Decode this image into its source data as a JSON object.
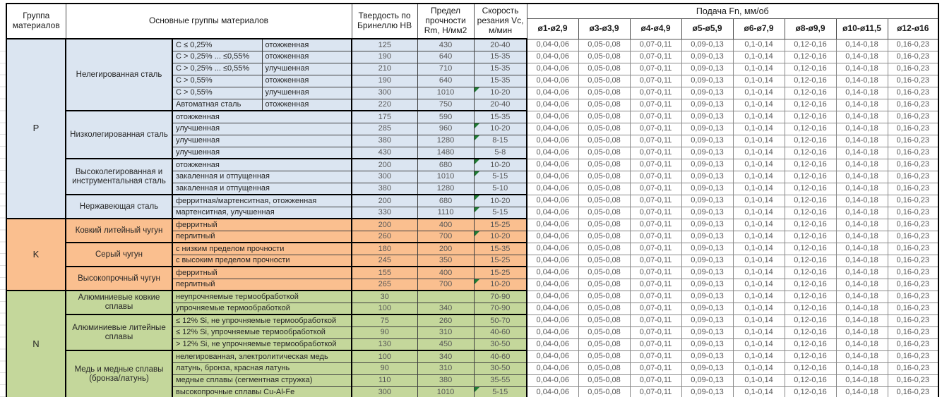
{
  "table": {
    "header": {
      "group": "Группа материалов",
      "materials": "Основные группы материалов",
      "hardness": "Твердость по Бринеллю HB",
      "strength": "Предел прочности Rm, Н/мм2",
      "speed": "Скорость резания Vc, м/мин",
      "feed_title": "Подача Fn, мм/об",
      "feed_cols": [
        "ø1-ø2,9",
        "ø3-ø3,9",
        "ø4-ø4,9",
        "ø5-ø5,9",
        "ø6-ø7,9",
        "ø8-ø9,9",
        "ø10-ø11,5",
        "ø12-ø16"
      ]
    },
    "feed_row_values": [
      "0,04-0,06",
      "0,05-0,08",
      "0,07-0,11",
      "0,09-0,13",
      "0,1-0,14",
      "0,12-0,16",
      "0,14-0,18",
      "0,16-0,23"
    ],
    "colors": {
      "group_P": "#dbe5f1",
      "group_K": "#fabf8f",
      "group_N": "#c4d79b",
      "marker": "#1e7b33"
    },
    "groups": [
      {
        "code": "P",
        "color": "#dbe5f1",
        "subgroups": [
          {
            "name": "Нелегированная сталь",
            "rows": [
              {
                "spec": "C ≤ 0,25%",
                "state": "отожженная",
                "hb": "125",
                "rm": "430",
                "vc": "20-40"
              },
              {
                "spec": "C > 0,25% ... ≤0,55%",
                "state": "отожженная",
                "hb": "190",
                "rm": "640",
                "vc": "15-35"
              },
              {
                "spec": "C > 0,25% ... ≤0,55%",
                "state": "улучшенная",
                "hb": "210",
                "rm": "710",
                "vc": "15-35"
              },
              {
                "spec": "C > 0,55%",
                "state": "отожженная",
                "hb": "190",
                "rm": "640",
                "vc": "15-35"
              },
              {
                "spec": "C > 0,55%",
                "state": "улучшенная",
                "hb": "300",
                "rm": "1010",
                "vc": "10-20",
                "marker": true
              },
              {
                "spec": "Автоматная сталь",
                "state": "отожженная",
                "hb": "220",
                "rm": "750",
                "vc": "20-40"
              }
            ]
          },
          {
            "name": "Низколегированная сталь",
            "rows": [
              {
                "spec": "отожженная",
                "hb": "175",
                "rm": "590",
                "vc": "15-35"
              },
              {
                "spec": "улучшенная",
                "hb": "285",
                "rm": "960",
                "vc": "10-20",
                "marker": true
              },
              {
                "spec": "улучшенная",
                "hb": "380",
                "rm": "1280",
                "vc": "8-15",
                "marker": true
              },
              {
                "spec": "улучшенная",
                "hb": "430",
                "rm": "1480",
                "vc": "5-8"
              }
            ]
          },
          {
            "name": "Высоколегированная и инструментальная сталь",
            "rows": [
              {
                "spec": "отожженная",
                "hb": "200",
                "rm": "680",
                "vc": "10-20",
                "marker": true
              },
              {
                "spec": "закаленная и отпущенная",
                "hb": "300",
                "rm": "1010",
                "vc": "5-15",
                "marker": true
              },
              {
                "spec": "закаленная и отпущенная",
                "hb": "380",
                "rm": "1280",
                "vc": "5-10"
              }
            ]
          },
          {
            "name": "Нержавеющая сталь",
            "rows": [
              {
                "spec": "ферритная/мартенситная, отожженная",
                "hb": "200",
                "rm": "680",
                "vc": "10-20",
                "marker": true
              },
              {
                "spec": "мартенситная, улучшенная",
                "hb": "330",
                "rm": "1110",
                "vc": "5-15",
                "marker": true
              }
            ]
          }
        ]
      },
      {
        "code": "K",
        "color": "#fabf8f",
        "subgroups": [
          {
            "name": "Ковкий литейный чугун",
            "rows": [
              {
                "spec": "ферритный",
                "hb": "200",
                "rm": "400",
                "vc": "15-25"
              },
              {
                "spec": "перлитный",
                "hb": "260",
                "rm": "700",
                "vc": "10-20",
                "marker": true
              }
            ]
          },
          {
            "name": "Серый чугун",
            "rows": [
              {
                "spec": "с низким пределом прочности",
                "hb": "180",
                "rm": "200",
                "vc": "15-35"
              },
              {
                "spec": "с высоким пределом прочности",
                "hb": "245",
                "rm": "350",
                "vc": "15-25"
              }
            ]
          },
          {
            "name": "Высокопрочный чугун",
            "rows": [
              {
                "spec": "ферритный",
                "hb": "155",
                "rm": "400",
                "vc": "15-25"
              },
              {
                "spec": "перлитный",
                "hb": "265",
                "rm": "700",
                "vc": "10-20",
                "marker": true
              }
            ]
          }
        ]
      },
      {
        "code": "N",
        "color": "#c4d79b",
        "subgroups": [
          {
            "name": "Алюминиевые ковкие сплавы",
            "rows": [
              {
                "spec": "неупрочняемые термообработкой",
                "hb": "30",
                "rm": "",
                "vc": "70-90"
              },
              {
                "spec": "упрочняемые термообработкой",
                "hb": "100",
                "rm": "340",
                "vc": "70-90"
              }
            ]
          },
          {
            "name": "Алюминиевые литейные сплавы",
            "rows": [
              {
                "spec": "≤ 12% Si, не упрочняемые термообработкой",
                "hb": "75",
                "rm": "260",
                "vc": "50-70"
              },
              {
                "spec": "≤ 12% Si, упрочняемые термообработкой",
                "hb": "90",
                "rm": "310",
                "vc": "40-60"
              },
              {
                "spec": "> 12% Si, не упрочняемые термообработкой",
                "hb": "130",
                "rm": "450",
                "vc": "30-50"
              }
            ]
          },
          {
            "name": "Медь и медные сплавы (бронза/латунь)",
            "rows": [
              {
                "spec": "нелегированная, электролитическая медь",
                "hb": "100",
                "rm": "340",
                "vc": "40-60"
              },
              {
                "spec": "латунь, бронза, красная латунь",
                "hb": "90",
                "rm": "310",
                "vc": "30-50"
              },
              {
                "spec": "медные сплавы (сегментная стружка)",
                "hb": "110",
                "rm": "380",
                "vc": "35-55"
              },
              {
                "spec": "высокопрочные сплавы Cu-Al-Fe",
                "hb": "300",
                "rm": "1010",
                "vc": "5-15",
                "marker": true
              }
            ]
          }
        ]
      }
    ]
  }
}
